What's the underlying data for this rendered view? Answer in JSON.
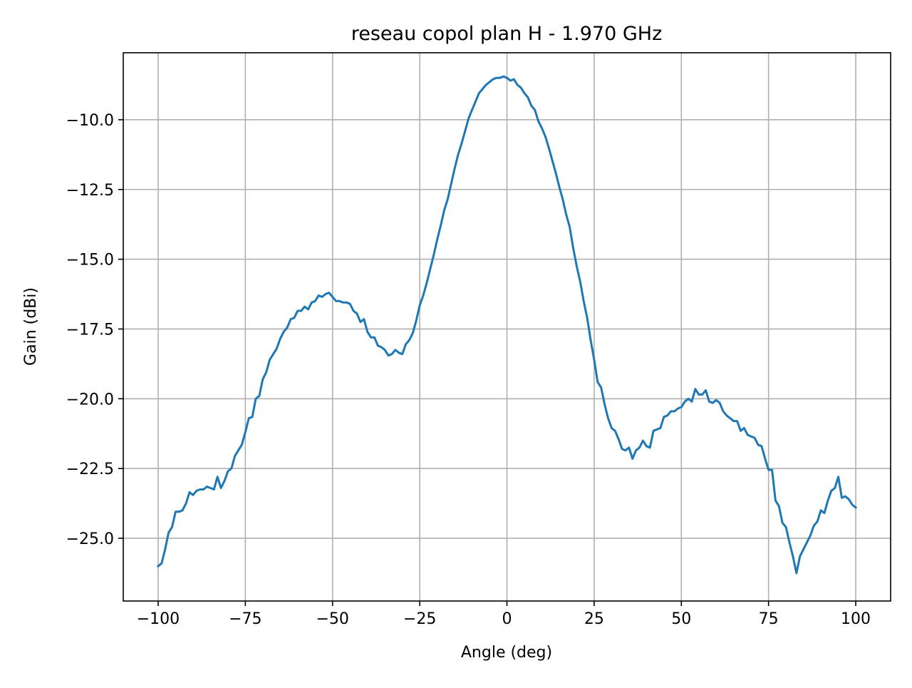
{
  "chart_data": {
    "type": "line",
    "title": "reseau copol plan H - 1.970 GHz",
    "xlabel": "Angle (deg)",
    "ylabel": "Gain (dBi)",
    "xlim": [
      -110,
      110
    ],
    "ylim": [
      -27.25,
      -7.6
    ],
    "xticks": [
      -100,
      -75,
      -50,
      -25,
      0,
      25,
      50,
      75,
      100
    ],
    "xtick_labels": [
      "−100",
      "−75",
      "−50",
      "−25",
      "0",
      "25",
      "50",
      "75",
      "100"
    ],
    "yticks": [
      -10.0,
      -12.5,
      -15.0,
      -17.5,
      -20.0,
      -22.5,
      -25.0
    ],
    "ytick_labels": [
      "−10.0",
      "−12.5",
      "−15.0",
      "−17.5",
      "−20.0",
      "−22.5",
      "−25.0"
    ],
    "grid": true,
    "series": [
      {
        "color": "#1f77b4",
        "x": [
          -100,
          -99,
          -98,
          -97,
          -96,
          -95,
          -94,
          -93,
          -92,
          -91,
          -90,
          -89,
          -88,
          -87,
          -86,
          -85,
          -84,
          -83,
          -82,
          -81,
          -80,
          -79,
          -78,
          -77,
          -76,
          -75,
          -74,
          -73,
          -72,
          -71,
          -70,
          -69,
          -68,
          -67,
          -66,
          -65,
          -64,
          -63,
          -62,
          -61,
          -60,
          -59,
          -58,
          -57,
          -56,
          -55,
          -54,
          -53,
          -52,
          -51,
          -50,
          -49,
          -48,
          -47,
          -46,
          -45,
          -44,
          -43,
          -42,
          -41,
          -40,
          -39,
          -38,
          -37,
          -36,
          -35,
          -34,
          -33,
          -32,
          -31,
          -30,
          -29,
          -28,
          -27,
          -26,
          -25,
          -24,
          -23,
          -22,
          -21,
          -20,
          -19,
          -18,
          -17,
          -16,
          -15,
          -14,
          -13,
          -12,
          -11,
          -10,
          -9,
          -8,
          -7,
          -6,
          -5,
          -4,
          -3,
          -2,
          -1,
          0,
          1,
          2,
          3,
          4,
          5,
          6,
          7,
          8,
          9,
          10,
          11,
          12,
          13,
          14,
          15,
          16,
          17,
          18,
          19,
          20,
          21,
          22,
          23,
          24,
          25,
          26,
          27,
          28,
          29,
          30,
          31,
          32,
          33,
          34,
          35,
          36,
          37,
          38,
          39,
          40,
          41,
          42,
          43,
          44,
          45,
          46,
          47,
          48,
          49,
          50,
          51,
          52,
          53,
          54,
          55,
          56,
          57,
          58,
          59,
          60,
          61,
          62,
          63,
          64,
          65,
          66,
          67,
          68,
          69,
          70,
          71,
          72,
          73,
          74,
          75,
          76,
          77,
          78,
          79,
          80,
          81,
          82,
          83,
          84,
          85,
          86,
          87,
          88,
          89,
          90,
          91,
          92,
          93,
          94,
          95,
          96,
          97,
          98,
          99,
          100
        ],
        "y": [
          -26.0,
          -25.9,
          -25.4,
          -24.8,
          -24.6,
          -24.05,
          -24.05,
          -24.0,
          -23.75,
          -23.35,
          -23.45,
          -23.3,
          -23.25,
          -23.25,
          -23.15,
          -23.2,
          -23.25,
          -22.8,
          -23.2,
          -22.95,
          -22.6,
          -22.5,
          -22.05,
          -21.85,
          -21.65,
          -21.2,
          -20.7,
          -20.65,
          -20.0,
          -19.9,
          -19.3,
          -19.05,
          -18.6,
          -18.4,
          -18.2,
          -17.85,
          -17.6,
          -17.45,
          -17.15,
          -17.1,
          -16.85,
          -16.85,
          -16.7,
          -16.8,
          -16.55,
          -16.5,
          -16.3,
          -16.35,
          -16.25,
          -16.2,
          -16.35,
          -16.5,
          -16.5,
          -16.55,
          -16.55,
          -16.6,
          -16.85,
          -16.95,
          -17.25,
          -17.15,
          -17.6,
          -17.8,
          -17.8,
          -18.1,
          -18.15,
          -18.25,
          -18.45,
          -18.4,
          -18.25,
          -18.35,
          -18.4,
          -18.05,
          -17.9,
          -17.65,
          -17.2,
          -16.65,
          -16.3,
          -15.85,
          -15.35,
          -14.85,
          -14.3,
          -13.8,
          -13.25,
          -12.85,
          -12.3,
          -11.75,
          -11.25,
          -10.85,
          -10.4,
          -9.95,
          -9.65,
          -9.35,
          -9.05,
          -8.9,
          -8.75,
          -8.65,
          -8.55,
          -8.5,
          -8.5,
          -8.45,
          -8.5,
          -8.6,
          -8.55,
          -8.75,
          -8.85,
          -9.05,
          -9.2,
          -9.5,
          -9.65,
          -10.05,
          -10.3,
          -10.6,
          -11.0,
          -11.45,
          -11.9,
          -12.4,
          -12.85,
          -13.4,
          -13.85,
          -14.6,
          -15.25,
          -15.8,
          -16.5,
          -17.1,
          -17.9,
          -18.6,
          -19.4,
          -19.6,
          -20.2,
          -20.7,
          -21.05,
          -21.15,
          -21.45,
          -21.8,
          -21.85,
          -21.75,
          -22.15,
          -21.85,
          -21.75,
          -21.5,
          -21.7,
          -21.75,
          -21.15,
          -21.1,
          -21.05,
          -20.65,
          -20.6,
          -20.45,
          -20.45,
          -20.35,
          -20.3,
          -20.1,
          -20.0,
          -20.1,
          -19.65,
          -19.85,
          -19.85,
          -19.7,
          -20.1,
          -20.15,
          -20.05,
          -20.15,
          -20.45,
          -20.6,
          -20.7,
          -20.8,
          -20.8,
          -21.15,
          -21.05,
          -21.3,
          -21.35,
          -21.4,
          -21.65,
          -21.7,
          -22.15,
          -22.55,
          -22.55,
          -23.65,
          -23.85,
          -24.45,
          -24.6,
          -25.15,
          -25.65,
          -26.25,
          -25.65,
          -25.4,
          -25.15,
          -24.9,
          -24.55,
          -24.4,
          -24.0,
          -24.1,
          -23.65,
          -23.3,
          -23.2,
          -22.8,
          -23.55,
          -23.5,
          -23.6,
          -23.8,
          -23.9
        ]
      }
    ]
  }
}
